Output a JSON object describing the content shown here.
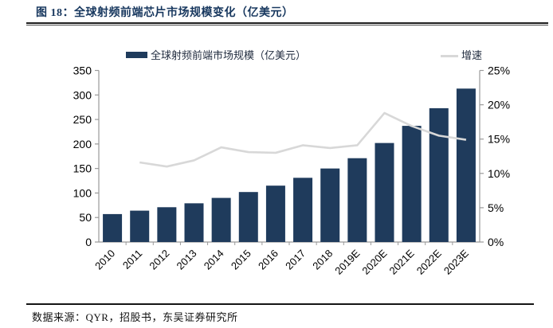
{
  "header": {
    "title": "图 18：全球射频前端芯片市场规模变化（亿美元）",
    "title_color": "#17375E"
  },
  "legend": {
    "items": [
      {
        "label": "全球射频前端市场规模（亿美元）",
        "swatch": "filled-rect",
        "color": "#1F3B5C"
      },
      {
        "label": "增速",
        "swatch": "line",
        "color": "#D8D8D8"
      }
    ]
  },
  "footer": {
    "source": "数据来源：QYR，招股书，东吴证券研究所"
  },
  "chart_data": {
    "type": "bar",
    "subtype": "combo-bar-line-dual-axis",
    "title": "全球射频前端芯片市场规模变化（亿美元）",
    "categories": [
      "2010",
      "2011",
      "2012",
      "2013",
      "2014",
      "2015",
      "2016",
      "2017",
      "2018",
      "2019E",
      "2020E",
      "2021E",
      "2022E",
      "2023E"
    ],
    "series": [
      {
        "name": "全球射频前端市场规模（亿美元）",
        "type": "bar",
        "yaxis": "left",
        "color": "#1F3B5C",
        "values": [
          57,
          64,
          71,
          79,
          90,
          102,
          115,
          131,
          150,
          171,
          202,
          237,
          273,
          313
        ]
      },
      {
        "name": "增速",
        "type": "line",
        "yaxis": "right",
        "color": "#D8D8D8",
        "unit": "%",
        "values": [
          null,
          11.6,
          11.0,
          11.9,
          13.8,
          13.1,
          13.0,
          14.1,
          13.7,
          14.1,
          18.8,
          16.9,
          15.5,
          14.9
        ]
      }
    ],
    "left_axis": {
      "min": 0,
      "max": 350,
      "step": 50,
      "tick_labels": [
        "0",
        "50",
        "100",
        "150",
        "200",
        "250",
        "300",
        "350"
      ]
    },
    "right_axis": {
      "min": 0,
      "max": 25,
      "step": 5,
      "tick_labels": [
        "0%",
        "5%",
        "10%",
        "15%",
        "20%",
        "25%"
      ]
    },
    "grid": false,
    "legend_position": "top",
    "x_label_rotation": -45,
    "axis_color": "#9a9a9a"
  }
}
